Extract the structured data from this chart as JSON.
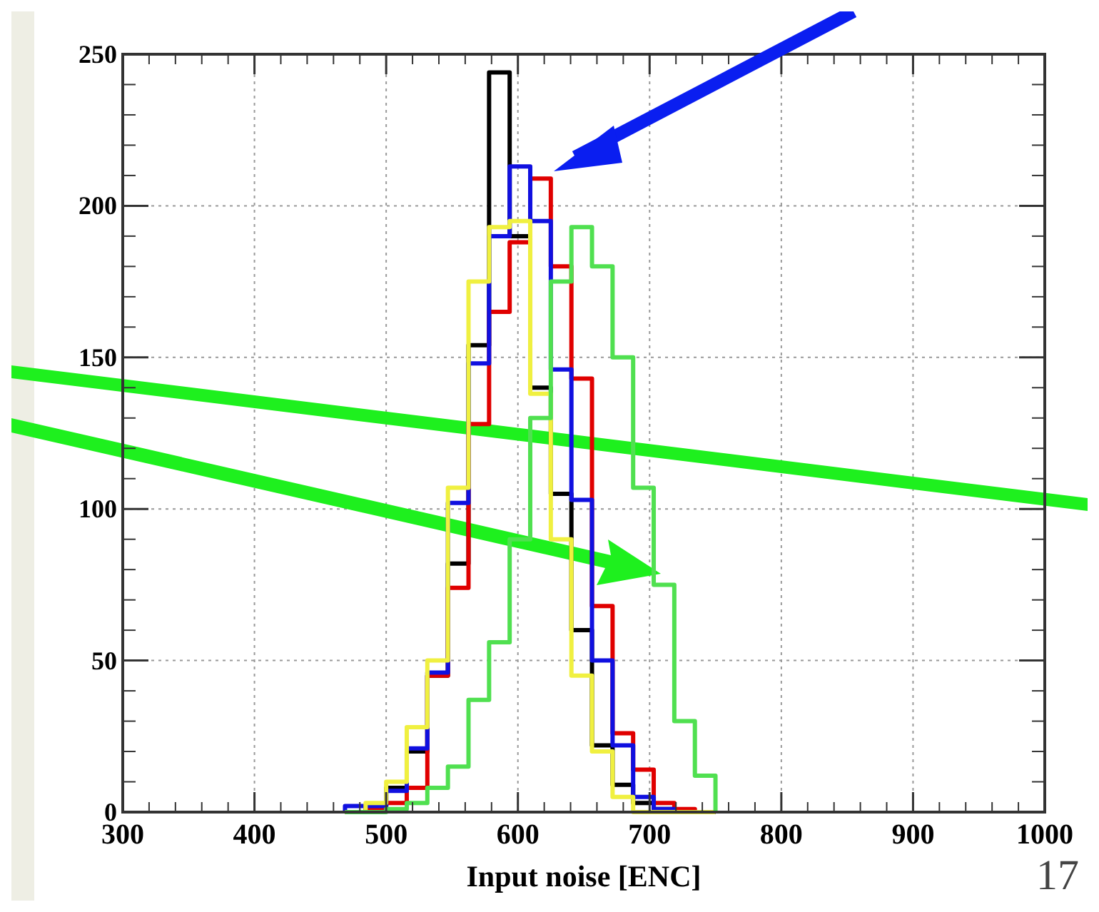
{
  "chart_data": {
    "type": "histogram",
    "xlabel": "Input noise [ENC]",
    "bins": [
      468.75,
      484.375,
      500,
      515.625,
      531.25,
      546.875,
      562.5,
      578.125,
      593.75,
      609.375,
      625,
      640.625,
      656.25,
      671.875,
      687.5,
      703.125,
      718.75,
      734.375,
      750
    ],
    "series": [
      {
        "color": "#000000",
        "values": [
          0,
          2,
          8,
          20,
          45,
          82,
          154,
          244,
          190,
          140,
          105,
          60,
          22,
          9,
          3,
          1,
          0,
          0
        ]
      },
      {
        "color": "#e00000",
        "values": [
          0,
          1,
          3,
          8,
          45,
          74,
          128,
          165,
          188,
          209,
          180,
          143,
          68,
          26,
          14,
          3,
          1,
          0
        ]
      },
      {
        "color": "#1010e0",
        "values": [
          2,
          2,
          7,
          21,
          46,
          102,
          148,
          190,
          213,
          195,
          146,
          103,
          50,
          22,
          5,
          1,
          0,
          0
        ]
      },
      {
        "color": "#f0f040",
        "values": [
          0,
          3,
          10,
          28,
          50,
          107,
          175,
          193,
          195,
          138,
          90,
          45,
          20,
          5,
          0,
          0,
          0,
          0
        ]
      },
      {
        "color": "#50e050",
        "values": [
          0,
          0,
          1,
          3,
          8,
          15,
          37,
          56,
          90,
          130,
          175,
          193,
          180,
          150,
          107,
          75,
          30,
          12
        ]
      }
    ],
    "xlim": [
      300,
      1000
    ],
    "ylim": [
      0,
      250
    ],
    "xticks": [
      300,
      400,
      500,
      600,
      700,
      800,
      900,
      1000
    ],
    "yticks": [
      0,
      50,
      100,
      150,
      200,
      250
    ],
    "grid": true,
    "annotations": [
      "17"
    ]
  }
}
